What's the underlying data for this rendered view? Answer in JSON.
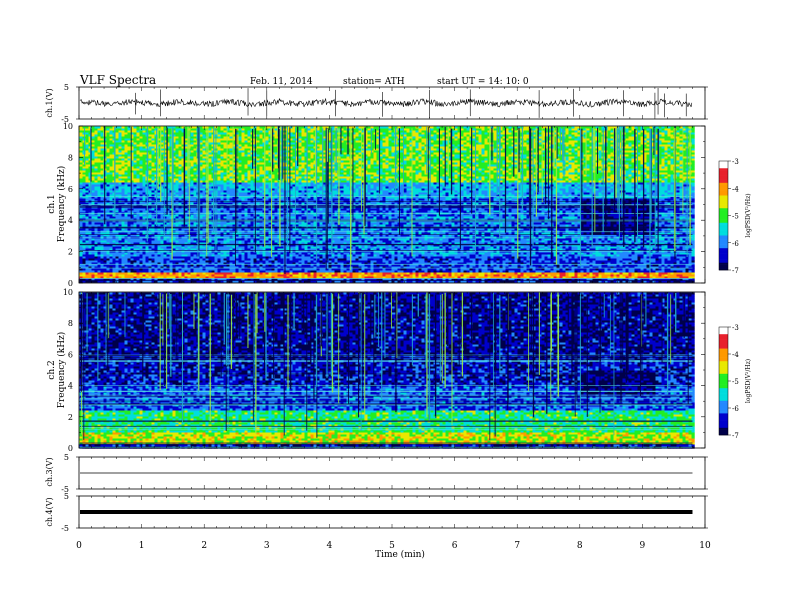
{
  "header": {
    "title": "VLF  Spectra",
    "date": "Feb. 11, 2014",
    "station": "station= ATH",
    "start": "start  UT  =    14: 10: 0"
  },
  "colorbar": {
    "label": "logPSD(V²/Hz)",
    "ticks": [
      "-3",
      "-4",
      "-5",
      "-6",
      "-7"
    ],
    "colors": [
      "#ffffff",
      "#e8202c",
      "#ff9900",
      "#e8e800",
      "#22ee22",
      "#00dddd",
      "#2288ff",
      "#0000cc",
      "#00004a"
    ]
  },
  "chart_data": [
    {
      "type": "line",
      "ylabel": "ch.1(V)",
      "ylim": [
        -5,
        5
      ],
      "yticks": [
        "5",
        "-5"
      ],
      "x": [
        0,
        10
      ],
      "baseline": 0,
      "spikes_at_min": [
        0.9,
        1.3,
        2.7,
        3.0,
        4.1,
        4.85,
        5.6,
        6.25,
        7.35,
        7.9,
        8.7,
        9.2,
        9.25,
        9.35,
        9.7
      ]
    },
    {
      "type": "heatmap",
      "ylabel": "ch.1\nFrequency  (kHz)",
      "ylim": [
        0,
        10
      ],
      "yticks": [
        "10",
        "8",
        "6",
        "4",
        "2",
        "0"
      ],
      "xlim": [
        0,
        10
      ],
      "data_end_min": 9.8,
      "bands_khz": [
        {
          "from": 0.0,
          "to": 0.3,
          "logpsd": -6.5
        },
        {
          "from": 0.3,
          "to": 0.7,
          "logpsd": -4.0
        },
        {
          "from": 0.7,
          "to": 1.8,
          "logpsd": -6.3
        },
        {
          "from": 1.8,
          "to": 4.5,
          "logpsd": -6.0
        },
        {
          "from": 4.5,
          "to": 5.5,
          "logpsd": -6.2
        },
        {
          "from": 5.5,
          "to": 6.5,
          "logpsd": -5.8
        },
        {
          "from": 6.5,
          "to": 10.0,
          "logpsd": -4.9
        }
      ],
      "quiet_interval": {
        "from_min": 8.0,
        "to_min": 9.2,
        "khz": [
          3.2,
          5.5
        ],
        "logpsd": -6.8
      }
    },
    {
      "type": "heatmap",
      "ylabel": "ch.2\nFrequency  (kHz)",
      "ylim": [
        0,
        10
      ],
      "yticks": [
        "10",
        "8",
        "6",
        "4",
        "2",
        "0"
      ],
      "xlim": [
        0,
        10
      ],
      "data_end_min": 9.8,
      "bands_khz": [
        {
          "from": 0.0,
          "to": 0.3,
          "logpsd": -6.6
        },
        {
          "from": 0.3,
          "to": 1.0,
          "logpsd": -4.6
        },
        {
          "from": 1.0,
          "to": 2.5,
          "logpsd": -5.2
        },
        {
          "from": 2.5,
          "to": 4.0,
          "logpsd": -6.2
        },
        {
          "from": 4.0,
          "to": 6.0,
          "logpsd": -6.5
        },
        {
          "from": 6.0,
          "to": 10.0,
          "logpsd": -6.7
        }
      ],
      "quiet_interval": {
        "from_min": 8.0,
        "to_min": 9.2,
        "khz": [
          3.5,
          5.0
        ],
        "logpsd": -6.9
      }
    },
    {
      "type": "line",
      "ylabel": "ch.3(V)",
      "ylim": [
        -5,
        5
      ],
      "yticks": [
        "5",
        "-5"
      ],
      "x": [
        0,
        10
      ],
      "baseline": 0
    },
    {
      "type": "line",
      "ylabel": "ch.4(V)",
      "ylim": [
        -5,
        5
      ],
      "yticks": [
        "5",
        "-5"
      ],
      "x": [
        0,
        10
      ],
      "baseline": 0
    }
  ],
  "xaxis": {
    "label": "Time  (min)",
    "range": [
      0,
      10
    ],
    "ticks": [
      "0",
      "1",
      "2",
      "3",
      "4",
      "5",
      "6",
      "7",
      "8",
      "9",
      "10"
    ]
  }
}
